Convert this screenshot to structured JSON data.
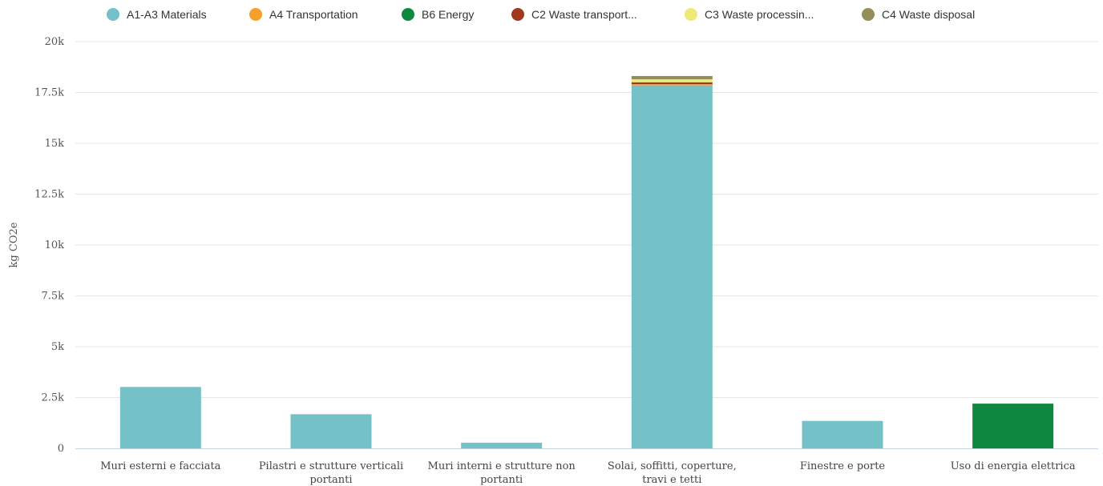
{
  "chart_data": {
    "type": "bar",
    "stacked": true,
    "ylabel": "kg CO2e",
    "ylim": [
      0,
      20000
    ],
    "y_ticks": [
      {
        "value": 0,
        "label": "0"
      },
      {
        "value": 2500,
        "label": "2.5k"
      },
      {
        "value": 5000,
        "label": "5k"
      },
      {
        "value": 7500,
        "label": "7.5k"
      },
      {
        "value": 10000,
        "label": "10k"
      },
      {
        "value": 12500,
        "label": "12.5k"
      },
      {
        "value": 15000,
        "label": "15k"
      },
      {
        "value": 17500,
        "label": "17.5k"
      },
      {
        "value": 20000,
        "label": "20k"
      }
    ],
    "categories": [
      [
        "Muri esterni e facciata"
      ],
      [
        "Pilastri e strutture verticali",
        "portanti"
      ],
      [
        "Muri interni e strutture non",
        "portanti"
      ],
      [
        "Solai, soffitti, coperture,",
        "travi e tetti"
      ],
      [
        "Finestre e porte"
      ],
      [
        "Uso di energia elettrica"
      ]
    ],
    "legend_position": "top",
    "grid": true,
    "series": [
      {
        "name": "A1-A3 Materials",
        "color": "#74c2c7",
        "values": [
          3020,
          1680,
          280,
          17850,
          1350,
          0
        ]
      },
      {
        "name": "A4 Transportation",
        "color": "#f5a02a",
        "values": [
          0,
          0,
          0,
          60,
          0,
          0
        ]
      },
      {
        "name": "B6 Energy",
        "color": "#0e8740",
        "values": [
          0,
          0,
          0,
          0,
          0,
          2200
        ]
      },
      {
        "name": "C2 Waste transport...",
        "color": "#a0391d",
        "values": [
          0,
          0,
          0,
          90,
          0,
          0
        ]
      },
      {
        "name": "C3 Waste processin...",
        "color": "#efe878",
        "values": [
          0,
          0,
          0,
          150,
          0,
          0
        ]
      },
      {
        "name": "C4 Waste disposal",
        "color": "#938e57",
        "values": [
          0,
          0,
          0,
          160,
          0,
          0
        ]
      }
    ]
  }
}
